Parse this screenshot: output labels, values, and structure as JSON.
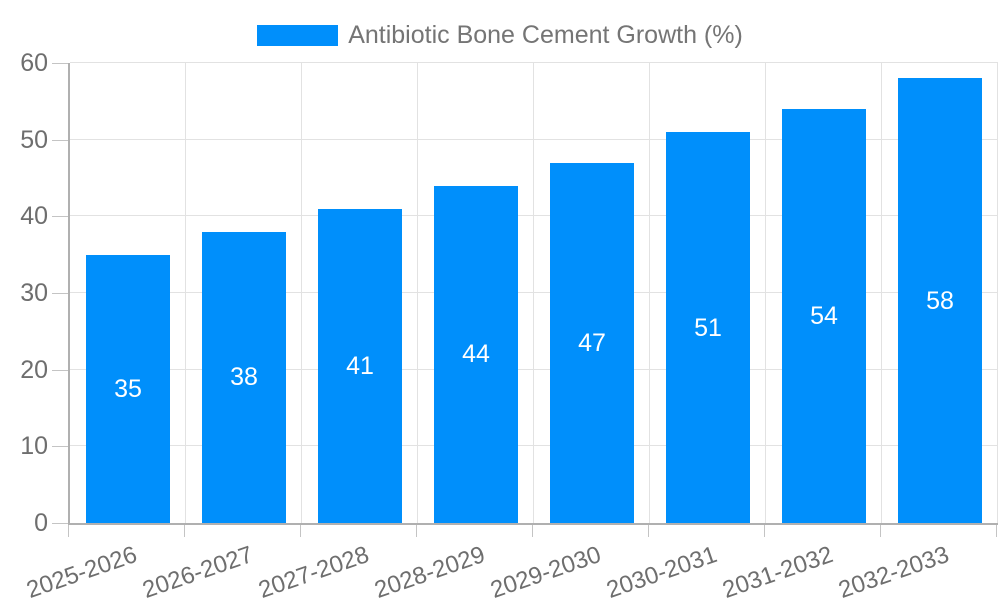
{
  "chart_data": {
    "type": "bar",
    "title": "",
    "series_name": "Antibiotic Bone Cement Growth (%)",
    "categories": [
      "2025-2026",
      "2026-2027",
      "2027-2028",
      "2028-2029",
      "2029-2030",
      "2030-2031",
      "2031-2032",
      "2032-2033"
    ],
    "values": [
      35,
      38,
      41,
      44,
      47,
      51,
      54,
      58
    ],
    "xlabel": "",
    "ylabel": "",
    "ylim": [
      0,
      60
    ],
    "yticks": [
      0,
      10,
      20,
      30,
      40,
      50,
      60
    ],
    "grid": true,
    "legend_position": "top",
    "value_labels": "centered-inside-bars",
    "colors": {
      "bar": "#008FFB",
      "value_label": "#ffffff",
      "axis_text": "#6e6e6e",
      "legend_text": "#757575",
      "gridline": "#e2e2e2",
      "axis_line": "#b0b0b0",
      "background": "#ffffff"
    }
  },
  "legend": {
    "items": [
      {
        "label": "Antibiotic Bone Cement Growth (%)",
        "color": "#008FFB"
      }
    ]
  }
}
